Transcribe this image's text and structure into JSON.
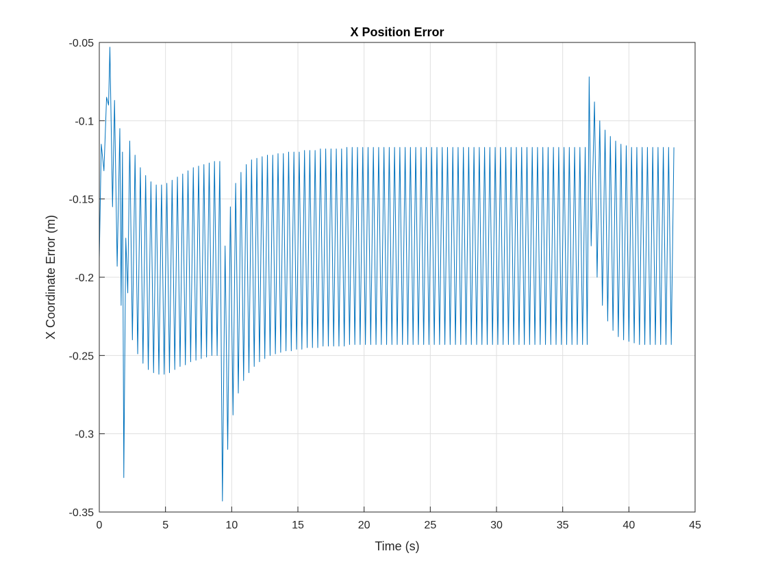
{
  "chart_data": {
    "type": "line",
    "title": "X Position Error",
    "x_label": "Time (s)",
    "y_label": "X Coordinate Error (m)",
    "color": "#0072bd",
    "grid": true,
    "xlim": [
      0,
      45
    ],
    "ylim": [
      -0.35,
      -0.05
    ],
    "xticks": [
      0,
      5,
      10,
      15,
      20,
      25,
      30,
      35,
      40,
      45
    ],
    "yticks": [
      -0.35,
      -0.3,
      -0.25,
      -0.2,
      -0.15,
      -0.1,
      -0.05
    ],
    "x": [
      0,
      0.15,
      0.35,
      0.55,
      0.7,
      0.8,
      1.0,
      1.15,
      1.35,
      1.55,
      1.65,
      1.75,
      1.85,
      2.0,
      2.15,
      2.3,
      2.5,
      2.7,
      2.9,
      3.1,
      3.3,
      3.5,
      3.7,
      3.9,
      4.1,
      4.3,
      4.5,
      4.7,
      4.9,
      5.1,
      5.3,
      5.5,
      5.7,
      5.9,
      6.1,
      6.3,
      6.5,
      6.7,
      6.9,
      7.1,
      7.3,
      7.5,
      7.7,
      7.9,
      8.1,
      8.3,
      8.5,
      8.7,
      8.9,
      9.1,
      9.3,
      9.5,
      9.7,
      9.9,
      10.1,
      10.3,
      10.5,
      10.7,
      10.9,
      11.1,
      11.3,
      11.5,
      11.7,
      11.9,
      12.1,
      12.3,
      12.5,
      12.7,
      12.9,
      13.1,
      13.3,
      13.5,
      13.7,
      13.9,
      14.1,
      14.3,
      14.5,
      14.7,
      14.9,
      15.1,
      15.3,
      15.5,
      15.7,
      15.9,
      16.1,
      16.3,
      16.5,
      16.7,
      16.9,
      17.1,
      17.3,
      17.5,
      17.7,
      17.9,
      18.1,
      18.3,
      18.5,
      18.7,
      18.9,
      19.1,
      19.3,
      19.5,
      19.7,
      19.9,
      20.1,
      20.3,
      20.5,
      20.7,
      20.9,
      21.1,
      21.3,
      21.5,
      21.7,
      21.9,
      22.1,
      22.3,
      22.5,
      22.7,
      22.9,
      23.1,
      23.3,
      23.5,
      23.7,
      23.9,
      24.1,
      24.3,
      24.5,
      24.7,
      24.9,
      25.1,
      25.3,
      25.5,
      25.7,
      25.9,
      26.1,
      26.3,
      26.5,
      26.7,
      26.9,
      27.1,
      27.3,
      27.5,
      27.7,
      27.9,
      28.1,
      28.3,
      28.5,
      28.7,
      28.9,
      29.1,
      29.3,
      29.5,
      29.7,
      29.9,
      30.1,
      30.3,
      30.5,
      30.7,
      30.9,
      31.1,
      31.3,
      31.5,
      31.7,
      31.9,
      32.1,
      32.3,
      32.5,
      32.7,
      32.9,
      33.1,
      33.3,
      33.5,
      33.7,
      33.9,
      34.1,
      34.3,
      34.5,
      34.7,
      34.9,
      35.1,
      35.3,
      35.5,
      35.7,
      35.9,
      36.1,
      36.3,
      36.5,
      36.7,
      36.85,
      37.0,
      37.15,
      37.4,
      37.6,
      37.8,
      38.0,
      38.2,
      38.4,
      38.6,
      38.8,
      39.0,
      39.2,
      39.4,
      39.6,
      39.8,
      40.0,
      40.2,
      40.4,
      40.6,
      40.8,
      41.0,
      41.2,
      41.4,
      41.6,
      41.8,
      42.0,
      42.2,
      42.4,
      42.6,
      42.8,
      43.0,
      43.2,
      43.4
    ],
    "values": [
      -0.188,
      -0.115,
      -0.132,
      -0.085,
      -0.09,
      -0.053,
      -0.155,
      -0.087,
      -0.193,
      -0.105,
      -0.218,
      -0.12,
      -0.328,
      -0.175,
      -0.21,
      -0.113,
      -0.24,
      -0.122,
      -0.249,
      -0.13,
      -0.255,
      -0.135,
      -0.259,
      -0.139,
      -0.261,
      -0.141,
      -0.262,
      -0.141,
      -0.262,
      -0.14,
      -0.261,
      -0.138,
      -0.259,
      -0.136,
      -0.257,
      -0.134,
      -0.256,
      -0.132,
      -0.254,
      -0.13,
      -0.253,
      -0.129,
      -0.252,
      -0.128,
      -0.251,
      -0.127,
      -0.25,
      -0.126,
      -0.25,
      -0.126,
      -0.343,
      -0.18,
      -0.31,
      -0.155,
      -0.288,
      -0.14,
      -0.274,
      -0.133,
      -0.266,
      -0.128,
      -0.261,
      -0.125,
      -0.257,
      -0.124,
      -0.254,
      -0.123,
      -0.252,
      -0.122,
      -0.25,
      -0.122,
      -0.249,
      -0.121,
      -0.248,
      -0.121,
      -0.247,
      -0.12,
      -0.247,
      -0.12,
      -0.246,
      -0.12,
      -0.246,
      -0.119,
      -0.245,
      -0.119,
      -0.245,
      -0.119,
      -0.245,
      -0.118,
      -0.244,
      -0.118,
      -0.244,
      -0.118,
      -0.244,
      -0.118,
      -0.244,
      -0.118,
      -0.244,
      -0.117,
      -0.243,
      -0.117,
      -0.243,
      -0.117,
      -0.243,
      -0.117,
      -0.243,
      -0.117,
      -0.243,
      -0.117,
      -0.243,
      -0.117,
      -0.243,
      -0.117,
      -0.243,
      -0.117,
      -0.243,
      -0.117,
      -0.243,
      -0.117,
      -0.243,
      -0.117,
      -0.243,
      -0.117,
      -0.243,
      -0.117,
      -0.243,
      -0.117,
      -0.243,
      -0.117,
      -0.243,
      -0.117,
      -0.243,
      -0.117,
      -0.243,
      -0.117,
      -0.243,
      -0.117,
      -0.243,
      -0.117,
      -0.243,
      -0.117,
      -0.243,
      -0.117,
      -0.243,
      -0.117,
      -0.243,
      -0.117,
      -0.243,
      -0.117,
      -0.243,
      -0.117,
      -0.243,
      -0.117,
      -0.243,
      -0.117,
      -0.243,
      -0.117,
      -0.243,
      -0.117,
      -0.243,
      -0.117,
      -0.243,
      -0.117,
      -0.243,
      -0.117,
      -0.243,
      -0.117,
      -0.243,
      -0.117,
      -0.243,
      -0.117,
      -0.243,
      -0.117,
      -0.243,
      -0.117,
      -0.243,
      -0.117,
      -0.243,
      -0.117,
      -0.243,
      -0.117,
      -0.243,
      -0.117,
      -0.243,
      -0.117,
      -0.243,
      -0.117,
      -0.243,
      -0.117,
      -0.243,
      -0.072,
      -0.18,
      -0.088,
      -0.2,
      -0.1,
      -0.218,
      -0.106,
      -0.228,
      -0.11,
      -0.234,
      -0.113,
      -0.238,
      -0.115,
      -0.24,
      -0.116,
      -0.241,
      -0.117,
      -0.242,
      -0.117,
      -0.243,
      -0.117,
      -0.243,
      -0.117,
      -0.243,
      -0.117,
      -0.243,
      -0.117,
      -0.243,
      -0.117,
      -0.243,
      -0.117,
      -0.243,
      -0.117
    ]
  }
}
